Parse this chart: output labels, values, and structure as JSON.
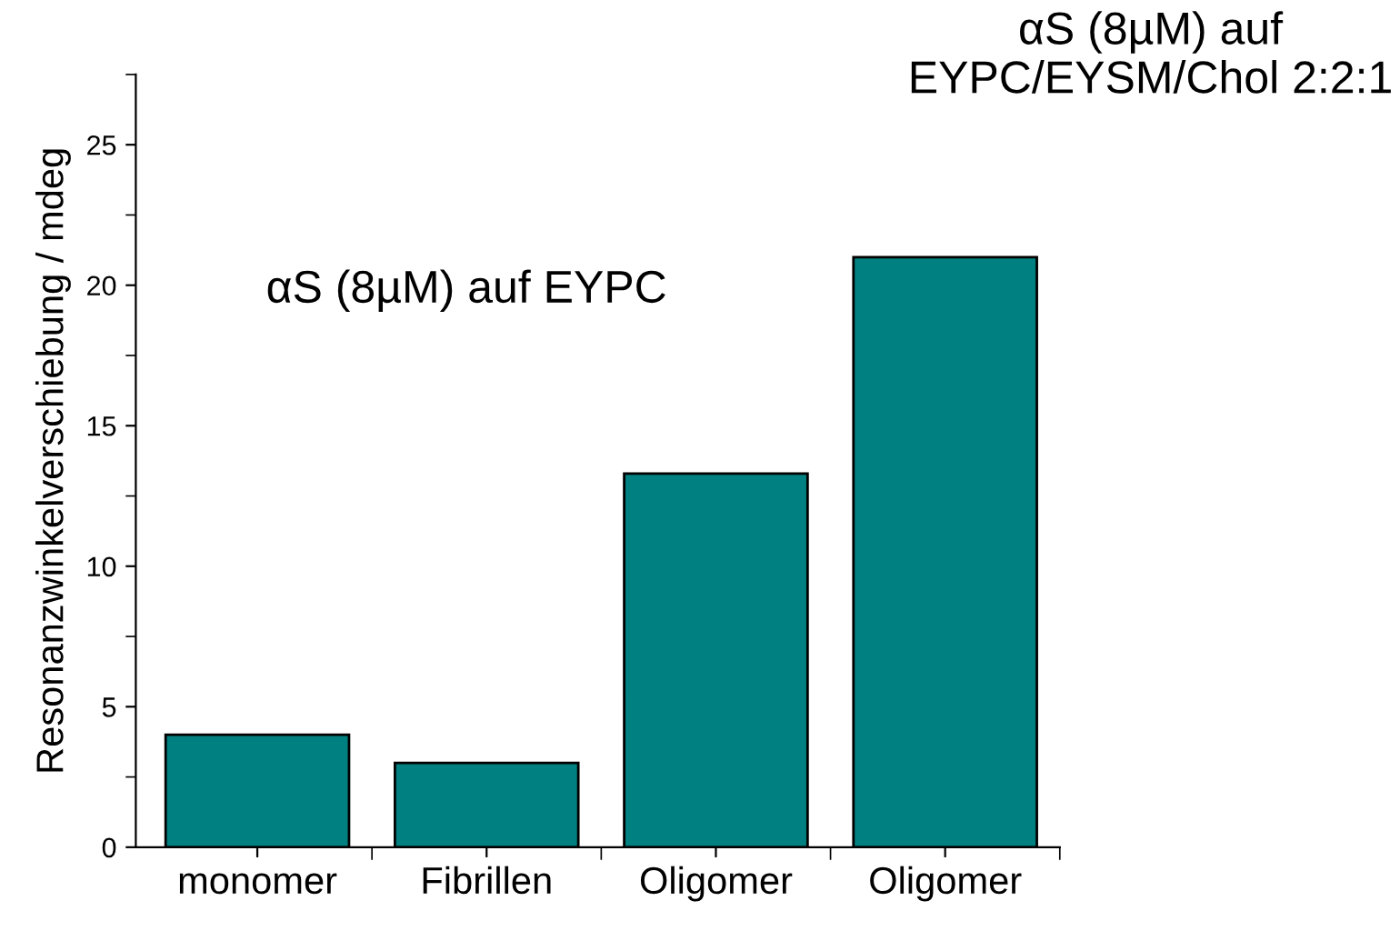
{
  "chart_data": {
    "type": "bar",
    "ylabel": "Resonanzwinkelverschiebung / mdeg",
    "categories": [
      "monomer",
      "Fibrillen",
      "Oligomer",
      "Oligomer"
    ],
    "values": [
      4.0,
      3.0,
      13.3,
      21.0
    ],
    "color": "#008080",
    "ylim": [
      0,
      27.5
    ],
    "yticks": [
      0,
      5,
      10,
      15,
      20,
      25
    ],
    "grid": false,
    "annotations": [
      "αS (8µM) auf EYPC",
      "αS (8µM) auf\nEYPC/EYSM/Chol 2:2:1"
    ]
  }
}
